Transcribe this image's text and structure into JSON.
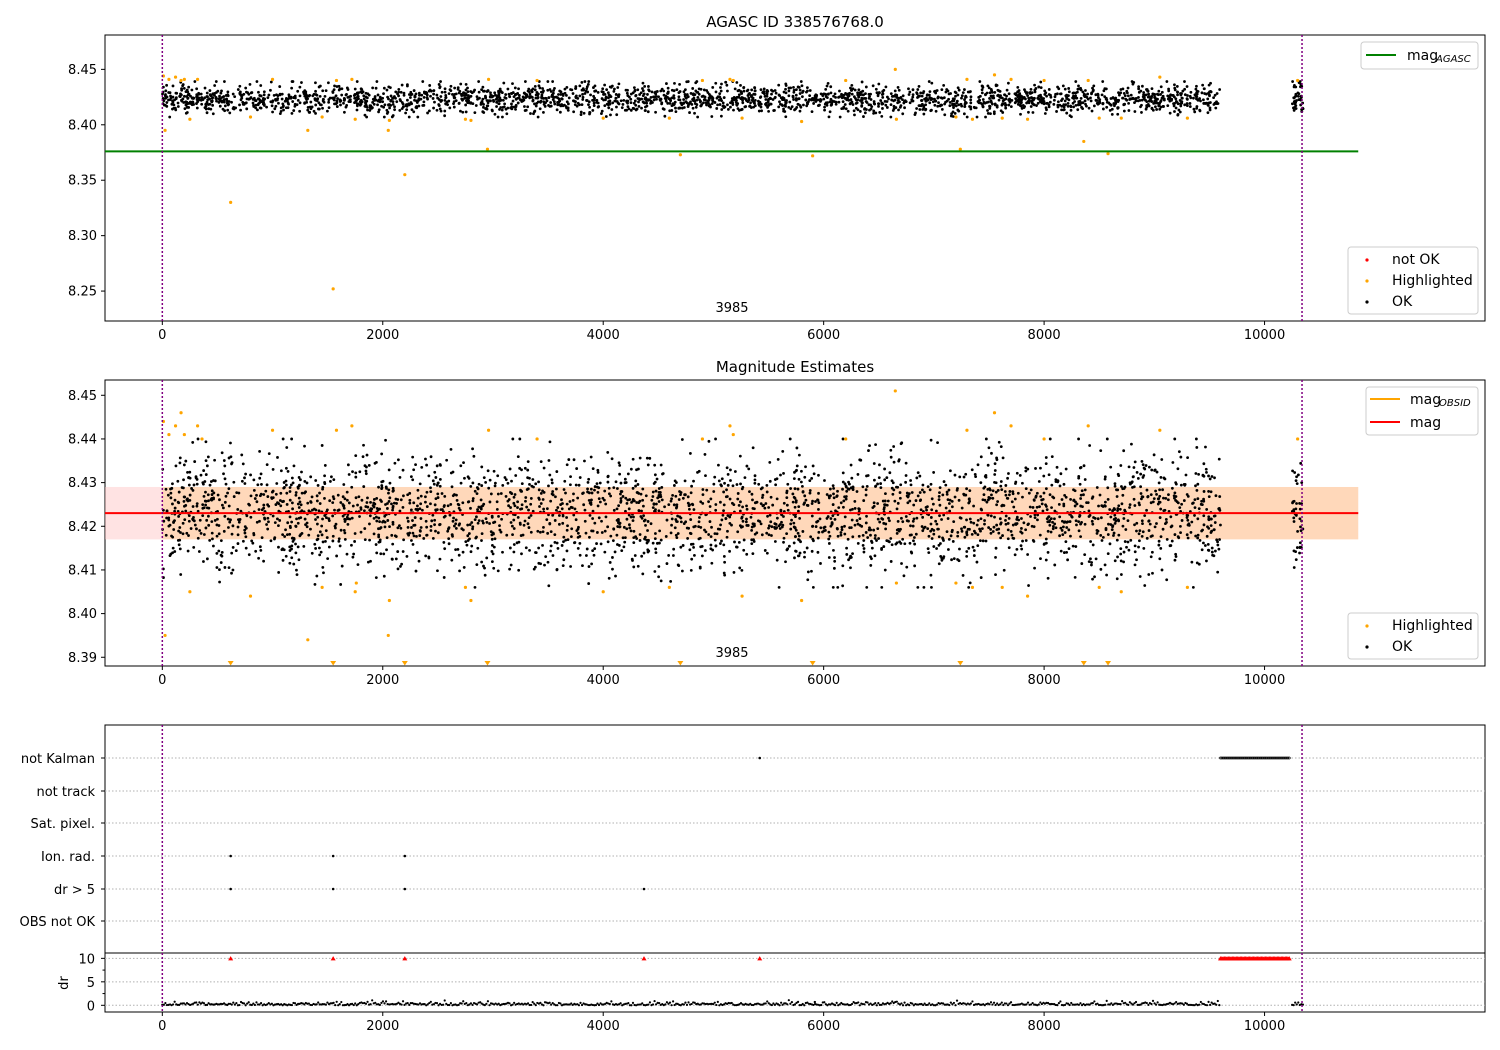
{
  "chart_data": [
    {
      "id": "top",
      "type": "scatter",
      "title": "AGASC ID 338576768.0",
      "xlabel": "",
      "ylabel": "",
      "xlim": [
        -520,
        12000
      ],
      "ylim": [
        8.223,
        8.481
      ],
      "xticks": [
        0,
        2000,
        4000,
        6000,
        8000,
        10000
      ],
      "yticks": [
        8.25,
        8.3,
        8.35,
        8.4,
        8.45
      ],
      "ytick_labels": [
        "8.25",
        "8.30",
        "8.35",
        "8.40",
        "8.45"
      ],
      "vlines": [
        0,
        10340
      ],
      "vline_color": "#800080",
      "hline": {
        "name": "mag_AGASC",
        "y": 8.376,
        "x_end": 10850,
        "color": "#008000"
      },
      "annotation": {
        "text": "3985",
        "x": 5150,
        "y": 8.23
      },
      "main_band": {
        "segments": [
          [
            0,
            9600
          ],
          [
            10250,
            10350
          ]
        ],
        "center": 8.423,
        "spread": 0.0065,
        "n_points": 2600,
        "color": "#000000"
      },
      "highlighted_points": [
        [
          10,
          8.444
        ],
        [
          25,
          8.395
        ],
        [
          60,
          8.441
        ],
        [
          120,
          8.443
        ],
        [
          170,
          8.44
        ],
        [
          200,
          8.441
        ],
        [
          250,
          8.405
        ],
        [
          320,
          8.441
        ],
        [
          620,
          8.33
        ],
        [
          800,
          8.407
        ],
        [
          1000,
          8.441
        ],
        [
          1320,
          8.395
        ],
        [
          1450,
          8.407
        ],
        [
          1550,
          8.252
        ],
        [
          1580,
          8.44
        ],
        [
          1720,
          8.441
        ],
        [
          1750,
          8.405
        ],
        [
          2050,
          8.395
        ],
        [
          2060,
          8.404
        ],
        [
          2200,
          8.355
        ],
        [
          2750,
          8.405
        ],
        [
          2800,
          8.404
        ],
        [
          2950,
          8.378
        ],
        [
          2960,
          8.441
        ],
        [
          3400,
          8.44
        ],
        [
          4000,
          8.406
        ],
        [
          4600,
          8.406
        ],
        [
          4700,
          8.373
        ],
        [
          4900,
          8.44
        ],
        [
          5150,
          8.441
        ],
        [
          5180,
          8.44
        ],
        [
          5260,
          8.406
        ],
        [
          5800,
          8.403
        ],
        [
          5900,
          8.372
        ],
        [
          6200,
          8.44
        ],
        [
          6650,
          8.45
        ],
        [
          6660,
          8.405
        ],
        [
          7200,
          8.407
        ],
        [
          7240,
          8.378
        ],
        [
          7300,
          8.441
        ],
        [
          7350,
          8.405
        ],
        [
          7550,
          8.445
        ],
        [
          7620,
          8.406
        ],
        [
          7700,
          8.441
        ],
        [
          7850,
          8.405
        ],
        [
          8000,
          8.44
        ],
        [
          8360,
          8.385
        ],
        [
          8400,
          8.44
        ],
        [
          8500,
          8.406
        ],
        [
          8580,
          8.374
        ],
        [
          8700,
          8.406
        ],
        [
          9050,
          8.443
        ],
        [
          9300,
          8.406
        ],
        [
          10300,
          8.44
        ]
      ],
      "legend": [
        {
          "label": "mag",
          "sub": "AGASC",
          "kind": "line",
          "color": "#008000"
        },
        {
          "label": "not OK",
          "kind": "dot",
          "color": "#ff0000"
        },
        {
          "label": "Highlighted",
          "kind": "dot",
          "color": "#ffa500"
        },
        {
          "label": "OK",
          "kind": "dot",
          "color": "#000000"
        }
      ]
    },
    {
      "id": "mid",
      "type": "scatter",
      "title": "Magnitude Estimates",
      "xlabel": "",
      "ylabel": "",
      "xlim": [
        -520,
        12000
      ],
      "ylim": [
        8.388,
        8.4535
      ],
      "xticks": [
        0,
        2000,
        4000,
        6000,
        8000,
        10000
      ],
      "yticks": [
        8.39,
        8.4,
        8.41,
        8.42,
        8.43,
        8.44,
        8.45
      ],
      "ytick_labels": [
        "8.39",
        "8.40",
        "8.41",
        "8.42",
        "8.43",
        "8.44",
        "8.45"
      ],
      "vlines": [
        0,
        10340
      ],
      "vline_color": "#800080",
      "mag_line": {
        "name": "mag",
        "y": 8.423,
        "x_end": 10850,
        "color": "#ff0000"
      },
      "mag_band": {
        "y_low": 8.417,
        "y_high": 8.429,
        "color": "#ffc0c0"
      },
      "obsid_band": {
        "x_start": 0,
        "x_end": 10850,
        "y_low": 8.417,
        "y_high": 8.429,
        "color": "#ffa500"
      },
      "annotation": {
        "text": "3985",
        "x": 5150,
        "y": 8.3895
      },
      "main_band": {
        "segments": [
          [
            0,
            9600
          ],
          [
            10250,
            10350
          ]
        ],
        "center": 8.423,
        "spread": 0.0065,
        "n_points": 3000,
        "color": "#000000"
      },
      "highlighted_points": [
        [
          10,
          8.444
        ],
        [
          25,
          8.395
        ],
        [
          60,
          8.441
        ],
        [
          120,
          8.443
        ],
        [
          170,
          8.446
        ],
        [
          200,
          8.441
        ],
        [
          250,
          8.405
        ],
        [
          320,
          8.443
        ],
        [
          360,
          8.44
        ],
        [
          800,
          8.404
        ],
        [
          1000,
          8.442
        ],
        [
          1320,
          8.394
        ],
        [
          1450,
          8.406
        ],
        [
          1580,
          8.442
        ],
        [
          1720,
          8.443
        ],
        [
          1750,
          8.405
        ],
        [
          1760,
          8.407
        ],
        [
          2050,
          8.395
        ],
        [
          2060,
          8.403
        ],
        [
          2750,
          8.406
        ],
        [
          2800,
          8.403
        ],
        [
          2960,
          8.442
        ],
        [
          3400,
          8.44
        ],
        [
          4000,
          8.405
        ],
        [
          4600,
          8.406
        ],
        [
          4900,
          8.44
        ],
        [
          5150,
          8.443
        ],
        [
          5180,
          8.441
        ],
        [
          5260,
          8.404
        ],
        [
          5800,
          8.403
        ],
        [
          6200,
          8.44
        ],
        [
          6650,
          8.451
        ],
        [
          6660,
          8.407
        ],
        [
          7200,
          8.407
        ],
        [
          7300,
          8.442
        ],
        [
          7350,
          8.406
        ],
        [
          7550,
          8.446
        ],
        [
          7620,
          8.406
        ],
        [
          7700,
          8.443
        ],
        [
          7850,
          8.404
        ],
        [
          8000,
          8.44
        ],
        [
          8400,
          8.443
        ],
        [
          8500,
          8.406
        ],
        [
          8700,
          8.405
        ],
        [
          9050,
          8.442
        ],
        [
          9300,
          8.406
        ],
        [
          10300,
          8.44
        ]
      ],
      "offscale_markers_x": [
        620,
        1550,
        2200,
        2950,
        4700,
        5900,
        7240,
        8360,
        8580
      ],
      "legend": [
        {
          "label": "mag",
          "sub": "OBSID",
          "kind": "line",
          "color": "#ffa500"
        },
        {
          "label": "mag",
          "sub": "",
          "kind": "line",
          "color": "#ff0000"
        },
        {
          "label": "Highlighted",
          "kind": "dot",
          "color": "#ffa500"
        },
        {
          "label": "OK",
          "kind": "dot",
          "color": "#000000"
        }
      ]
    },
    {
      "id": "flags",
      "type": "scatter",
      "title": "",
      "xlim": [
        -520,
        12000
      ],
      "categories": [
        "not Kalman",
        "not track",
        "Sat. pixel.",
        "Ion. rad.",
        "dr > 5",
        "OBS not OK"
      ],
      "vlines": [
        0,
        10340
      ],
      "vline_color": "#800080",
      "flag_points": {
        "not Kalman": [
          5420
        ],
        "Ion. rad.": [
          620,
          1550,
          2200
        ],
        "dr > 5": [
          620,
          1550,
          2200,
          4370
        ]
      },
      "not_kalman_segment": [
        9600,
        10230
      ]
    },
    {
      "id": "dr",
      "type": "scatter",
      "title": "",
      "xlabel": "",
      "ylabel": "dr",
      "xlim": [
        -520,
        12000
      ],
      "ylim": [
        -1,
        10.5
      ],
      "xticks": [
        0,
        2000,
        4000,
        6000,
        8000,
        10000
      ],
      "yticks": [
        0,
        5,
        10
      ],
      "ytick_labels": [
        "0",
        "5",
        "10"
      ],
      "vlines": [
        0,
        10340
      ],
      "vline_color": "#800080",
      "capped_markers_x": [
        620,
        1550,
        2200,
        4370,
        5420
      ],
      "capped_segment": [
        9600,
        10230
      ],
      "dr_segments": [
        [
          0,
          9600
        ],
        [
          10250,
          10350
        ]
      ]
    }
  ]
}
